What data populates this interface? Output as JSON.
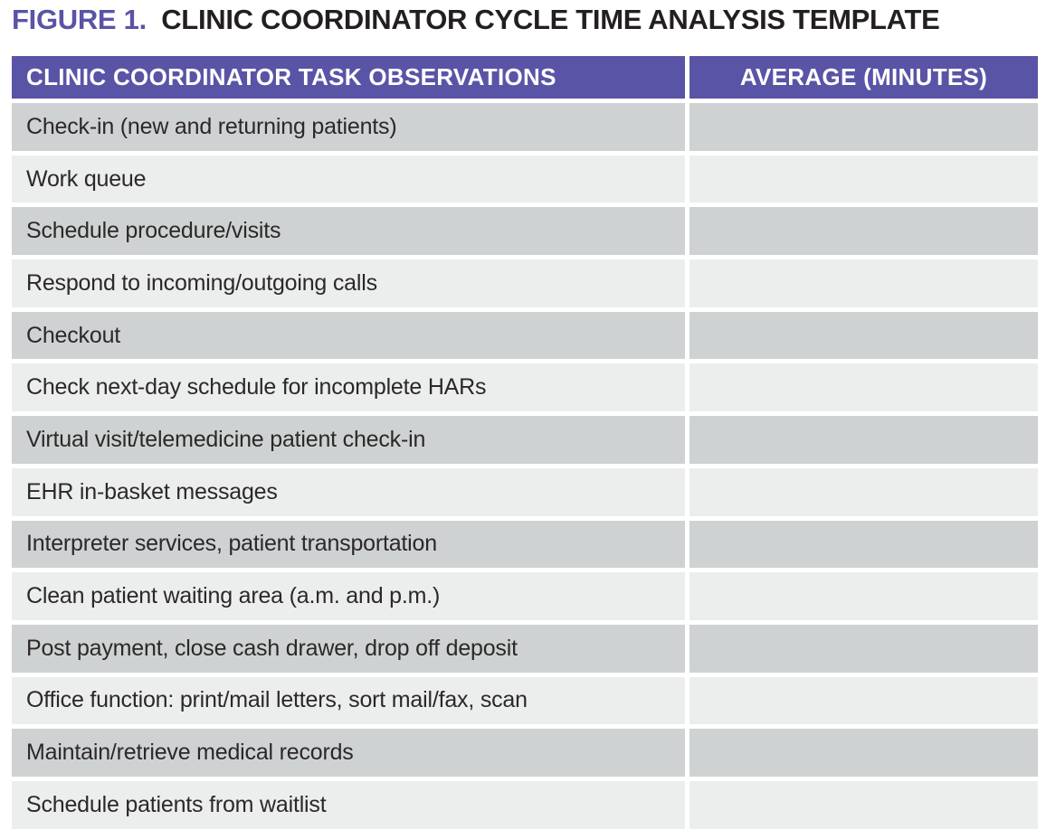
{
  "figure": {
    "label": "FIGURE 1.",
    "title": "CLINIC COORDINATOR CYCLE TIME ANALYSIS TEMPLATE"
  },
  "table": {
    "columns": [
      "CLINIC COORDINATOR TASK OBSERVATIONS",
      "AVERAGE (MINUTES)"
    ],
    "rows": [
      {
        "task": "Check-in (new and returning patients)",
        "average": ""
      },
      {
        "task": "Work queue",
        "average": ""
      },
      {
        "task": "Schedule procedure/visits",
        "average": ""
      },
      {
        "task": "Respond to incoming/outgoing calls",
        "average": ""
      },
      {
        "task": "Checkout",
        "average": ""
      },
      {
        "task": "Check next-day schedule for incomplete HARs",
        "average": ""
      },
      {
        "task": "Virtual visit/telemedicine patient check-in",
        "average": ""
      },
      {
        "task": "EHR in-basket messages",
        "average": ""
      },
      {
        "task": "Interpreter services, patient transportation",
        "average": ""
      },
      {
        "task": "Clean patient waiting area (a.m. and p.m.)",
        "average": ""
      },
      {
        "task": "Post payment, close cash drawer, drop off deposit",
        "average": ""
      },
      {
        "task": "Office function: print/mail letters, sort mail/fax, scan",
        "average": ""
      },
      {
        "task": "Maintain/retrieve medical records",
        "average": ""
      },
      {
        "task": "Schedule patients from waitlist",
        "average": ""
      }
    ]
  },
  "colors": {
    "accent": "#5a54a6",
    "header_bg": "#5a54a6",
    "header_text": "#ffffff",
    "title_text": "#231f20",
    "body_text": "#2b2829",
    "row_dark": "#cfd2d2",
    "row_light": "#eceeed"
  }
}
